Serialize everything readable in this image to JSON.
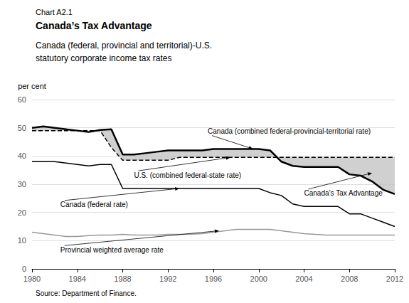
{
  "chart_data": {
    "type": "line",
    "supertitle": "Chart A2.1",
    "title": "Canada’s Tax Advantage",
    "subtitle": [
      "Canada (federal, provincial and territorial)-U.S.",
      "statutory corporate income tax rates"
    ],
    "source": "Source: Department of Finance.",
    "ylabel": "per cent",
    "x": [
      1980,
      1981,
      1982,
      1983,
      1984,
      1985,
      1986,
      1987,
      1988,
      1989,
      1990,
      1991,
      1992,
      1993,
      1994,
      1995,
      1996,
      1997,
      1998,
      1999,
      2000,
      2001,
      2002,
      2003,
      2004,
      2005,
      2006,
      2007,
      2008,
      2009,
      2010,
      2011,
      2012
    ],
    "xlim": [
      1980,
      2012
    ],
    "xticks": [
      1980,
      1984,
      1988,
      1992,
      1996,
      2000,
      2004,
      2008,
      2012
    ],
    "ylim": [
      0,
      60
    ],
    "yticks": [
      0,
      10,
      20,
      30,
      40,
      50,
      60
    ],
    "grid": "y",
    "series": [
      {
        "name": "Provincial weighted average rate",
        "color": "#999999",
        "line_style": "solid",
        "values": [
          13.0,
          12.5,
          12.0,
          11.5,
          11.5,
          11.8,
          12.0,
          12.0,
          12.2,
          12.0,
          12.0,
          12.0,
          12.2,
          12.2,
          12.3,
          12.5,
          13.0,
          13.5,
          14.0,
          14.0,
          14.0,
          14.0,
          13.5,
          13.0,
          12.5,
          12.2,
          12.0,
          12.0,
          12.0,
          12.0,
          12.0,
          12.0,
          12.0
        ]
      },
      {
        "name": "Canada (federal rate)",
        "color": "#000000",
        "line_style": "solid",
        "values": [
          38.0,
          38.0,
          38.0,
          37.5,
          37.0,
          36.5,
          37.0,
          37.0,
          28.5,
          28.5,
          28.5,
          28.5,
          28.5,
          28.5,
          28.5,
          28.5,
          28.5,
          28.5,
          28.5,
          28.5,
          28.5,
          27.0,
          26.0,
          23.0,
          22.1,
          22.1,
          22.1,
          22.1,
          19.5,
          19.5,
          18.0,
          16.5,
          15.0
        ]
      },
      {
        "name": "U.S. (combined federal-state rate)",
        "color": "#000000",
        "line_style": "dashed",
        "values": [
          49.0,
          49.0,
          49.0,
          49.0,
          49.0,
          49.0,
          49.0,
          43.0,
          38.5,
          38.5,
          38.5,
          38.5,
          38.5,
          39.5,
          39.5,
          39.5,
          39.5,
          39.5,
          39.5,
          39.5,
          39.5,
          39.5,
          39.5,
          39.5,
          39.5,
          39.5,
          39.5,
          39.5,
          39.5,
          39.5,
          39.5,
          39.5,
          39.5
        ]
      },
      {
        "name": "Canada (combined federal-provincial-territorial rate)",
        "color": "#000000",
        "line_style": "solid",
        "values": [
          50.0,
          50.5,
          50.0,
          49.5,
          49.0,
          48.5,
          49.2,
          49.5,
          40.5,
          40.5,
          41.0,
          41.5,
          42.0,
          42.0,
          42.0,
          42.0,
          42.5,
          42.5,
          42.5,
          42.5,
          42.5,
          42.0,
          38.0,
          36.5,
          36.1,
          36.1,
          36.1,
          36.1,
          33.5,
          33.0,
          31.0,
          28.0,
          26.5
        ]
      }
    ],
    "shade": {
      "between": [
        "Canada (combined federal-provincial-territorial rate)",
        "U.S. (combined federal-state rate)"
      ],
      "color": "#c0c0c0"
    },
    "annotations": [
      {
        "text": "Canada (combined federal-provincial-territorial rate)",
        "x": 1999.5,
        "y": 42.5,
        "text_x": 1995.5,
        "text_y": 47.5
      },
      {
        "text": "U.S. (combined federal-state rate)",
        "x": 1997.5,
        "y": 39.5,
        "text_x": 1989.0,
        "text_y": 34.5
      },
      {
        "text": "Canada (federal rate)",
        "x": 1993.0,
        "y": 28.5,
        "text_x": 1982.5,
        "text_y": 24.0
      },
      {
        "text": "Provincial weighted average rate",
        "x": 1996.5,
        "y": 13.5,
        "text_x": 1982.5,
        "text_y": 8.0
      },
      {
        "text": "Canada’s Tax Advantage",
        "x": 2010.0,
        "y": 34.0,
        "text_x": 2004.0,
        "text_y": 28.0
      }
    ]
  }
}
